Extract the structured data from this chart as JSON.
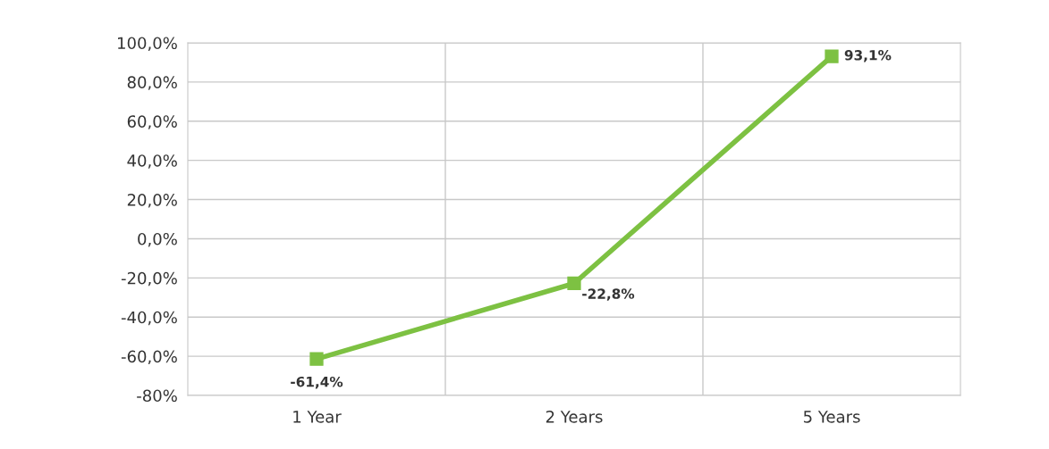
{
  "chart_data": {
    "type": "line",
    "categories": [
      "1 Year",
      "2 Years",
      "5 Years"
    ],
    "series": [
      {
        "color": "#7dc142",
        "values": [
          -61.4,
          -22.8,
          93.1
        ],
        "value_labels": [
          "-61,4%",
          "-22,8%",
          "93,1%"
        ]
      }
    ],
    "ylim": [
      -80,
      100
    ],
    "yticks": [
      {
        "value": -80,
        "label": "-80%"
      },
      {
        "value": -60,
        "label": "-60,0%"
      },
      {
        "value": -40,
        "label": "-40,0%"
      },
      {
        "value": -20,
        "label": "-20,0%"
      },
      {
        "value": 0,
        "label": "0,0%"
      },
      {
        "value": 20,
        "label": "20,0%"
      },
      {
        "value": 40,
        "label": "40,0%"
      },
      {
        "value": 60,
        "label": "60,0%"
      },
      {
        "value": 80,
        "label": "80,0%"
      },
      {
        "value": 100,
        "label": "100,0%"
      }
    ],
    "grid": true,
    "marker": "square",
    "line_style": "solid",
    "legend": false
  }
}
